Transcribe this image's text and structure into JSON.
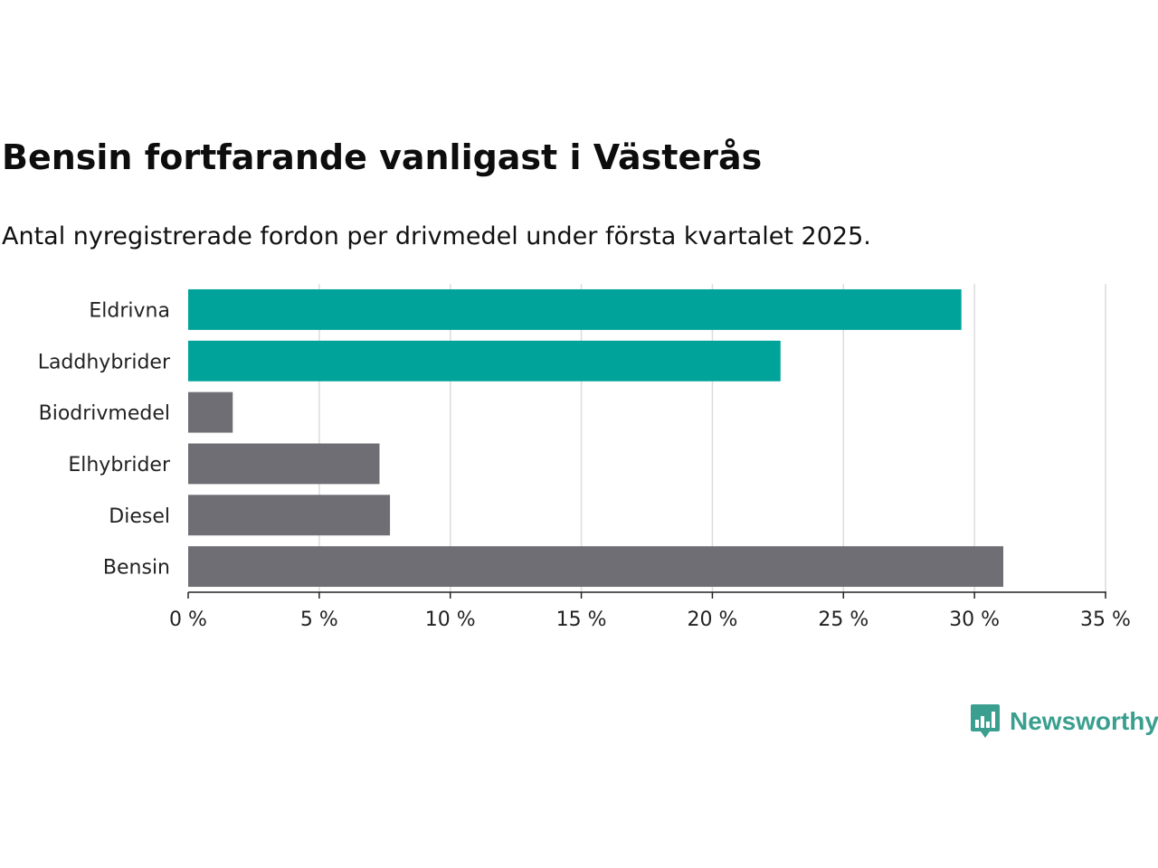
{
  "title": "Bensin fortfarande vanligast i Västerås",
  "subtitle": "Antal nyregistrerade fordon per drivmedel under första kvartalet 2025.",
  "brand": {
    "name": "Newsworthy",
    "color": "#3a9f8f",
    "icon": "bar-chart-speech-bubble-icon"
  },
  "chart_data": {
    "type": "bar",
    "orientation": "horizontal",
    "categories": [
      "Eldrivna",
      "Laddhybrider",
      "Biodrivmedel",
      "Elhybrider",
      "Diesel",
      "Bensin"
    ],
    "values": [
      29.5,
      22.6,
      1.7,
      7.3,
      7.7,
      31.1
    ],
    "bar_colors": [
      "#00a39a",
      "#00a39a",
      "#6f6e74",
      "#6f6e74",
      "#6f6e74",
      "#6f6e74"
    ],
    "xlim": [
      0,
      35
    ],
    "xticks": [
      0,
      5,
      10,
      15,
      20,
      25,
      30,
      35
    ],
    "xtick_labels": [
      "0 %",
      "5 %",
      "10 %",
      "15 %",
      "20 %",
      "25 %",
      "30 %",
      "35 %"
    ],
    "grid": true,
    "legend": "none",
    "xlabel": "",
    "ylabel": ""
  }
}
